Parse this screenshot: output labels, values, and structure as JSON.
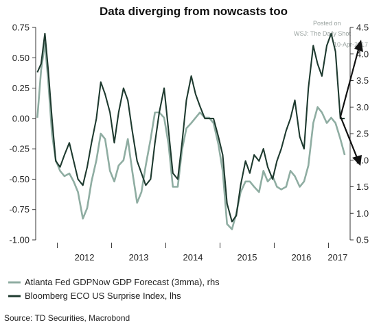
{
  "chart_data": {
    "type": "line",
    "title": "Data diverging from nowcasts too",
    "x_tick_labels": [
      "2012",
      "2013",
      "2014",
      "2015",
      "2016",
      "2017"
    ],
    "y_left_ticks": [
      "0.75",
      "0.50",
      "0.25",
      "0.00",
      "-0.25",
      "-0.50",
      "-0.75",
      "-1.00"
    ],
    "y_right_ticks": [
      "4.5",
      "4.0",
      "3.5",
      "3.0",
      "2.5",
      "2.0",
      "1.5",
      "1.0",
      "0.5"
    ],
    "ylim_left": [
      -1.0,
      0.75
    ],
    "ylim_right": [
      0.5,
      4.5
    ],
    "xlim": [
      2011.55,
      2017.35
    ],
    "series": [
      {
        "name": "Atlanta Fed GDPNow GDP Forecast (3mma), rhs",
        "axis": "right",
        "color": "#8fada2",
        "x": [
          2011.58,
          2011.65,
          2011.72,
          2011.78,
          2011.85,
          2011.92,
          2012.0,
          2012.08,
          2012.17,
          2012.25,
          2012.33,
          2012.42,
          2012.5,
          2012.58,
          2012.67,
          2012.75,
          2012.83,
          2012.92,
          2013.0,
          2013.08,
          2013.17,
          2013.25,
          2013.33,
          2013.42,
          2013.5,
          2013.58,
          2013.67,
          2013.75,
          2013.83,
          2013.92,
          2014.0,
          2014.08,
          2014.17,
          2014.25,
          2014.33,
          2014.42,
          2014.5,
          2014.58,
          2014.67,
          2014.75,
          2014.83,
          2014.92,
          2015.0,
          2015.08,
          2015.17,
          2015.25,
          2015.33,
          2015.42,
          2015.5,
          2015.58,
          2015.67,
          2015.75,
          2015.83,
          2015.92,
          2016.0,
          2016.08,
          2016.17,
          2016.25,
          2016.33,
          2016.42,
          2016.5,
          2016.58,
          2016.67,
          2016.75,
          2016.83,
          2016.92,
          2017.0,
          2017.08,
          2017.17,
          2017.25
        ],
        "values": [
          2.8,
          3.7,
          4.2,
          3.5,
          2.5,
          2.0,
          1.8,
          1.7,
          1.75,
          1.6,
          1.4,
          0.9,
          1.1,
          1.6,
          2.0,
          2.5,
          2.4,
          1.8,
          1.6,
          1.9,
          2.0,
          2.4,
          1.8,
          1.2,
          1.4,
          1.9,
          2.4,
          2.9,
          2.9,
          2.8,
          2.3,
          1.5,
          1.5,
          2.2,
          2.6,
          2.7,
          2.8,
          2.9,
          2.8,
          2.8,
          2.7,
          2.3,
          1.8,
          0.8,
          0.7,
          1.0,
          1.4,
          1.6,
          1.6,
          1.5,
          1.4,
          1.8,
          1.6,
          1.7,
          1.5,
          1.45,
          1.5,
          1.8,
          1.7,
          1.5,
          1.6,
          1.9,
          2.7,
          3.0,
          2.9,
          2.7,
          2.8,
          2.7,
          2.4,
          2.1
        ]
      },
      {
        "name": "Bloomberg ECO US Surprise Index, lhs",
        "axis": "left",
        "color": "#1e3a2f",
        "x": [
          2011.58,
          2011.65,
          2011.72,
          2011.78,
          2011.85,
          2011.92,
          2012.0,
          2012.08,
          2012.17,
          2012.25,
          2012.33,
          2012.42,
          2012.5,
          2012.58,
          2012.67,
          2012.75,
          2012.83,
          2012.92,
          2013.0,
          2013.08,
          2013.17,
          2013.25,
          2013.33,
          2013.42,
          2013.5,
          2013.58,
          2013.67,
          2013.75,
          2013.83,
          2013.92,
          2014.0,
          2014.08,
          2014.17,
          2014.25,
          2014.33,
          2014.42,
          2014.5,
          2014.58,
          2014.67,
          2014.75,
          2014.83,
          2014.92,
          2015.0,
          2015.08,
          2015.17,
          2015.25,
          2015.33,
          2015.42,
          2015.5,
          2015.58,
          2015.67,
          2015.75,
          2015.83,
          2015.92,
          2016.0,
          2016.08,
          2016.17,
          2016.25,
          2016.33,
          2016.42,
          2016.5,
          2016.58,
          2016.67,
          2016.75,
          2016.83,
          2016.92,
          2017.0,
          2017.08,
          2017.17,
          2017.25
        ],
        "values": [
          0.38,
          0.45,
          0.7,
          0.4,
          0.0,
          -0.35,
          -0.4,
          -0.3,
          -0.2,
          -0.35,
          -0.5,
          -0.55,
          -0.4,
          -0.2,
          0.0,
          0.3,
          0.2,
          0.05,
          -0.2,
          0.05,
          0.25,
          0.15,
          -0.1,
          -0.35,
          -0.45,
          -0.55,
          -0.5,
          -0.2,
          0.05,
          0.25,
          -0.1,
          -0.45,
          -0.5,
          -0.2,
          0.15,
          0.35,
          0.2,
          0.1,
          0.0,
          0.0,
          0.0,
          -0.15,
          -0.3,
          -0.7,
          -0.85,
          -0.8,
          -0.55,
          -0.35,
          -0.45,
          -0.3,
          -0.35,
          -0.25,
          -0.4,
          -0.5,
          -0.35,
          -0.25,
          -0.1,
          0.0,
          0.15,
          -0.15,
          -0.25,
          0.25,
          0.6,
          0.45,
          0.35,
          0.6,
          0.7,
          0.55,
          0.0,
          0.0
        ]
      }
    ],
    "legend": [
      "Atlanta Fed GDPNow GDP Forecast (3mma), rhs",
      "Bloomberg ECO US Surprise Index, lhs"
    ],
    "legend_placement": "bottom-left",
    "grid": false
  },
  "source_text": "Source: TD Securities, Macrobond",
  "watermark": [
    "Posted on",
    "WSJ: The Daily Shot",
    "10-Apr-2017"
  ],
  "annotation_colors": {
    "arrow": "#111111"
  }
}
